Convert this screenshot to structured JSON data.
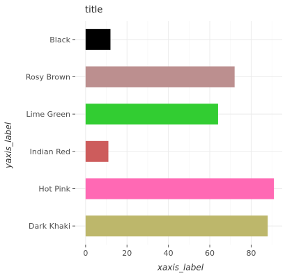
{
  "chart_data": {
    "type": "bar",
    "orientation": "horizontal",
    "title": "title",
    "xlabel": "xaxis_label",
    "ylabel": "yaxis_label",
    "categories": [
      "Dark Khaki",
      "Hot Pink",
      "Indian Red",
      "Lime Green",
      "Rosy Brown",
      "Black"
    ],
    "values": [
      88,
      91,
      11,
      64,
      72,
      12
    ],
    "colors": [
      "#BDB76B",
      "#FF69B4",
      "#CD5C5C",
      "#32CD32",
      "#BC8F8F",
      "#000000"
    ],
    "xlim": [
      -5,
      95
    ],
    "xticks": [
      "0",
      "20",
      "40",
      "60",
      "80"
    ],
    "grid": true,
    "legend": "none"
  }
}
